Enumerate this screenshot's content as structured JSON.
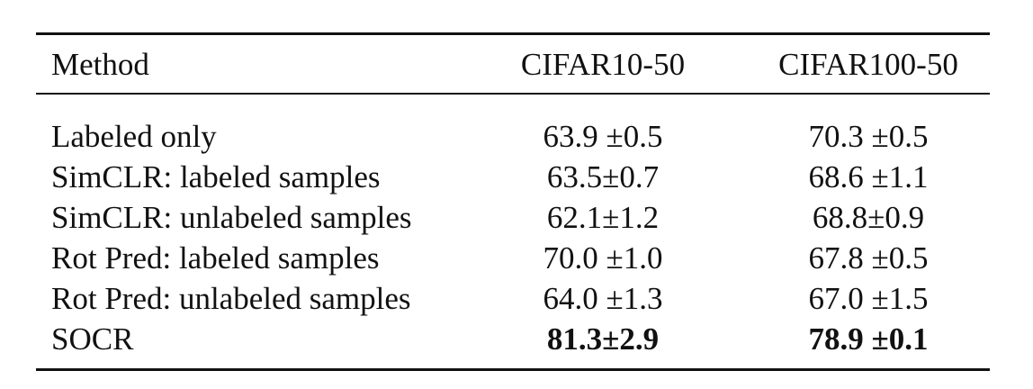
{
  "table": {
    "header": [
      "Method",
      "CIFAR10-50",
      "CIFAR100-50"
    ],
    "rows": [
      [
        "Labeled only",
        "63.9 ±0.5",
        "70.3 ±0.5"
      ],
      [
        "SimCLR: labeled samples",
        "63.5±0.7",
        "68.6 ±1.1"
      ],
      [
        "SimCLR: unlabeled samples",
        "62.1±1.2",
        "68.8±0.9"
      ],
      [
        "Rot Pred: labeled samples",
        "70.0 ±1.0",
        "67.8 ±0.5"
      ],
      [
        "Rot Pred: unlabeled samples",
        "64.0 ±1.3",
        "67.0 ±1.5"
      ],
      [
        "SOCR",
        "81.3±2.9",
        "78.9 ±0.1"
      ]
    ]
  }
}
